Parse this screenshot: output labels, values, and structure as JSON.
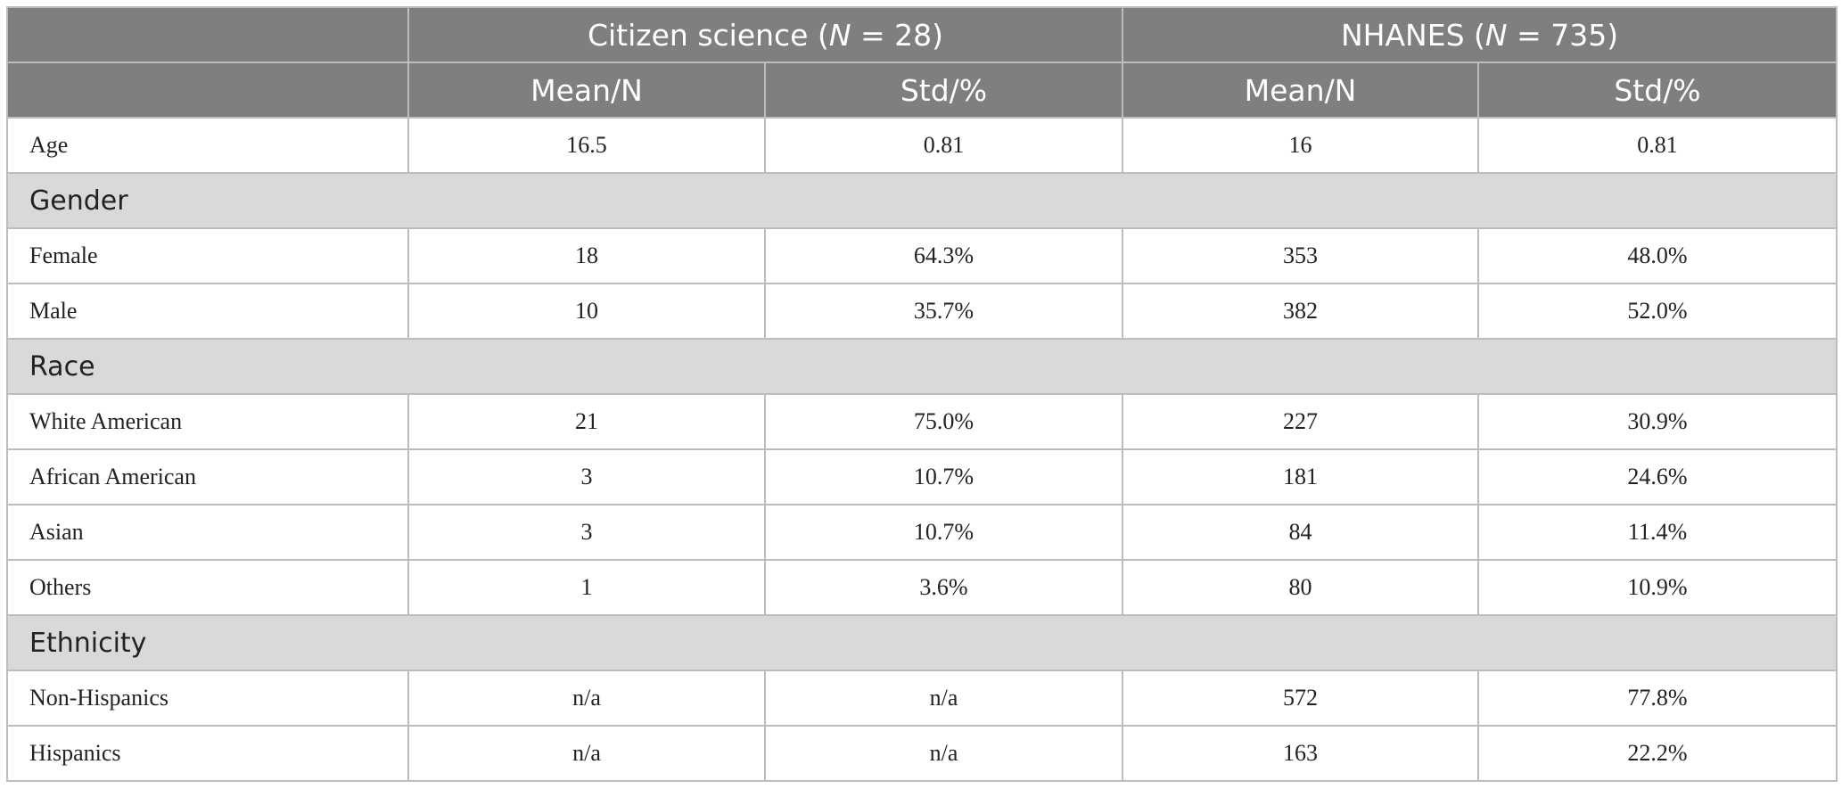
{
  "header": {
    "group1": {
      "prefix": "Citizen science (",
      "n_var": "N",
      "suffix": " = 28)"
    },
    "group2": {
      "prefix": "NHANES (",
      "n_var": "N",
      "suffix": " = 735)"
    },
    "sub": [
      "Mean/N",
      "Std/%",
      "Mean/N",
      "Std/%"
    ]
  },
  "rows": {
    "age": {
      "label": "Age",
      "v": [
        "16.5",
        "0.81",
        "16",
        "0.81"
      ]
    },
    "gender": {
      "label": "Gender"
    },
    "female": {
      "label": "Female",
      "v": [
        "18",
        "64.3%",
        "353",
        "48.0%"
      ]
    },
    "male": {
      "label": "Male",
      "v": [
        "10",
        "35.7%",
        "382",
        "52.0%"
      ]
    },
    "race": {
      "label": "Race"
    },
    "white": {
      "label": "White American",
      "v": [
        "21",
        "75.0%",
        "227",
        "30.9%"
      ]
    },
    "african": {
      "label": "African American",
      "v": [
        "3",
        "10.7%",
        "181",
        "24.6%"
      ]
    },
    "asian": {
      "label": "Asian",
      "v": [
        "3",
        "10.7%",
        "84",
        "11.4%"
      ]
    },
    "others": {
      "label": "Others",
      "v": [
        "1",
        "3.6%",
        "80",
        "10.9%"
      ]
    },
    "ethnicity": {
      "label": "Ethnicity"
    },
    "nonhisp": {
      "label": "Non-Hispanics",
      "v": [
        "n/a",
        "n/a",
        "572",
        "77.8%"
      ]
    },
    "hisp": {
      "label": "Hispanics",
      "v": [
        "n/a",
        "n/a",
        "163",
        "22.2%"
      ]
    }
  },
  "colors": {
    "header_bg": "#7f7f7f",
    "section_bg": "#d9d9d9",
    "border": "#bdbdbd"
  }
}
